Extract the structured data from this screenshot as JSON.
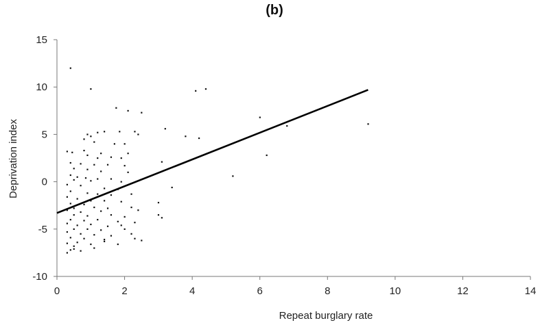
{
  "chart_data": {
    "type": "scatter",
    "title": "(b)",
    "xlabel": "Repeat burglary rate",
    "ylabel": "Deprivation index",
    "xlim": [
      0,
      14
    ],
    "ylim": [
      -10,
      15
    ],
    "xticks": [
      0,
      2,
      4,
      6,
      8,
      10,
      12,
      14
    ],
    "yticks": [
      -10,
      -5,
      0,
      5,
      10,
      15
    ],
    "grid": false,
    "legend": "none",
    "trendline": {
      "x": [
        0,
        9.2
      ],
      "y": [
        -3.3,
        9.7
      ]
    },
    "points": [
      [
        0.4,
        12.0
      ],
      [
        1.0,
        9.8
      ],
      [
        4.1,
        9.6
      ],
      [
        4.4,
        9.8
      ],
      [
        1.75,
        7.8
      ],
      [
        2.1,
        7.5
      ],
      [
        2.5,
        7.3
      ],
      [
        6.0,
        6.8
      ],
      [
        6.8,
        5.9
      ],
      [
        9.2,
        6.1
      ],
      [
        3.2,
        5.6
      ],
      [
        3.8,
        4.8
      ],
      [
        4.2,
        4.6
      ],
      [
        1.2,
        5.2
      ],
      [
        1.4,
        5.3
      ],
      [
        1.85,
        5.3
      ],
      [
        2.3,
        5.3
      ],
      [
        2.4,
        5.0
      ],
      [
        0.9,
        5.0
      ],
      [
        1.0,
        4.8
      ],
      [
        0.8,
        4.5
      ],
      [
        1.1,
        4.2
      ],
      [
        1.7,
        4.0
      ],
      [
        2.0,
        4.0
      ],
      [
        0.3,
        3.2
      ],
      [
        0.45,
        3.1
      ],
      [
        0.8,
        3.3
      ],
      [
        1.3,
        3.0
      ],
      [
        2.1,
        3.0
      ],
      [
        0.9,
        2.8
      ],
      [
        6.2,
        2.8
      ],
      [
        1.2,
        2.5
      ],
      [
        1.6,
        2.6
      ],
      [
        1.9,
        2.5
      ],
      [
        3.1,
        2.1
      ],
      [
        0.4,
        2.0
      ],
      [
        0.7,
        1.9
      ],
      [
        1.1,
        1.8
      ],
      [
        1.5,
        1.8
      ],
      [
        2.0,
        1.7
      ],
      [
        0.5,
        1.4
      ],
      [
        0.9,
        1.3
      ],
      [
        1.3,
        1.1
      ],
      [
        2.1,
        1.0
      ],
      [
        0.4,
        0.7
      ],
      [
        0.6,
        0.5
      ],
      [
        0.85,
        0.4
      ],
      [
        1.2,
        0.3
      ],
      [
        1.6,
        0.3
      ],
      [
        5.2,
        0.6
      ],
      [
        0.5,
        0.2
      ],
      [
        1.0,
        0.1
      ],
      [
        1.9,
        0.0
      ],
      [
        0.3,
        -0.3
      ],
      [
        0.7,
        -0.4
      ],
      [
        3.4,
        -0.6
      ],
      [
        1.4,
        -0.7
      ],
      [
        1.8,
        -0.8
      ],
      [
        0.4,
        -1.0
      ],
      [
        0.9,
        -1.2
      ],
      [
        1.2,
        -1.3
      ],
      [
        1.6,
        -1.4
      ],
      [
        2.2,
        -1.3
      ],
      [
        0.3,
        -1.6
      ],
      [
        0.6,
        -1.8
      ],
      [
        1.0,
        -2.0
      ],
      [
        1.4,
        -2.0
      ],
      [
        1.9,
        -2.1
      ],
      [
        0.4,
        -2.3
      ],
      [
        0.8,
        -2.4
      ],
      [
        3.0,
        -2.2
      ],
      [
        0.5,
        -2.8
      ],
      [
        1.1,
        -2.7
      ],
      [
        1.5,
        -2.8
      ],
      [
        2.2,
        -2.7
      ],
      [
        0.3,
        -3.0
      ],
      [
        0.7,
        -3.2
      ],
      [
        1.3,
        -3.1
      ],
      [
        2.4,
        -3.0
      ],
      [
        0.5,
        -3.5
      ],
      [
        0.9,
        -3.6
      ],
      [
        1.6,
        -3.5
      ],
      [
        2.0,
        -3.7
      ],
      [
        3.0,
        -3.5
      ],
      [
        3.1,
        -3.8
      ],
      [
        0.4,
        -4.0
      ],
      [
        0.8,
        -4.1
      ],
      [
        1.2,
        -4.0
      ],
      [
        1.8,
        -4.2
      ],
      [
        2.3,
        -4.3
      ],
      [
        0.3,
        -4.4
      ],
      [
        0.6,
        -4.6
      ],
      [
        1.0,
        -4.5
      ],
      [
        1.5,
        -4.7
      ],
      [
        1.9,
        -4.6
      ],
      [
        0.5,
        -5.0
      ],
      [
        0.9,
        -5.0
      ],
      [
        1.3,
        -5.1
      ],
      [
        2.0,
        -5.0
      ],
      [
        0.3,
        -5.3
      ],
      [
        0.7,
        -5.5
      ],
      [
        1.1,
        -5.6
      ],
      [
        1.6,
        -5.7
      ],
      [
        2.2,
        -5.5
      ],
      [
        0.4,
        -5.9
      ],
      [
        0.8,
        -6.0
      ],
      [
        1.4,
        -6.1
      ],
      [
        2.3,
        -6.0
      ],
      [
        2.5,
        -6.2
      ],
      [
        0.3,
        -6.5
      ],
      [
        0.6,
        -6.4
      ],
      [
        1.0,
        -6.6
      ],
      [
        1.8,
        -6.6
      ],
      [
        0.5,
        -6.8
      ],
      [
        1.1,
        -7.0
      ],
      [
        0.4,
        -7.2
      ],
      [
        0.7,
        -7.3
      ],
      [
        0.3,
        -7.5
      ],
      [
        0.5,
        -7.1
      ],
      [
        1.4,
        -6.3
      ]
    ]
  }
}
